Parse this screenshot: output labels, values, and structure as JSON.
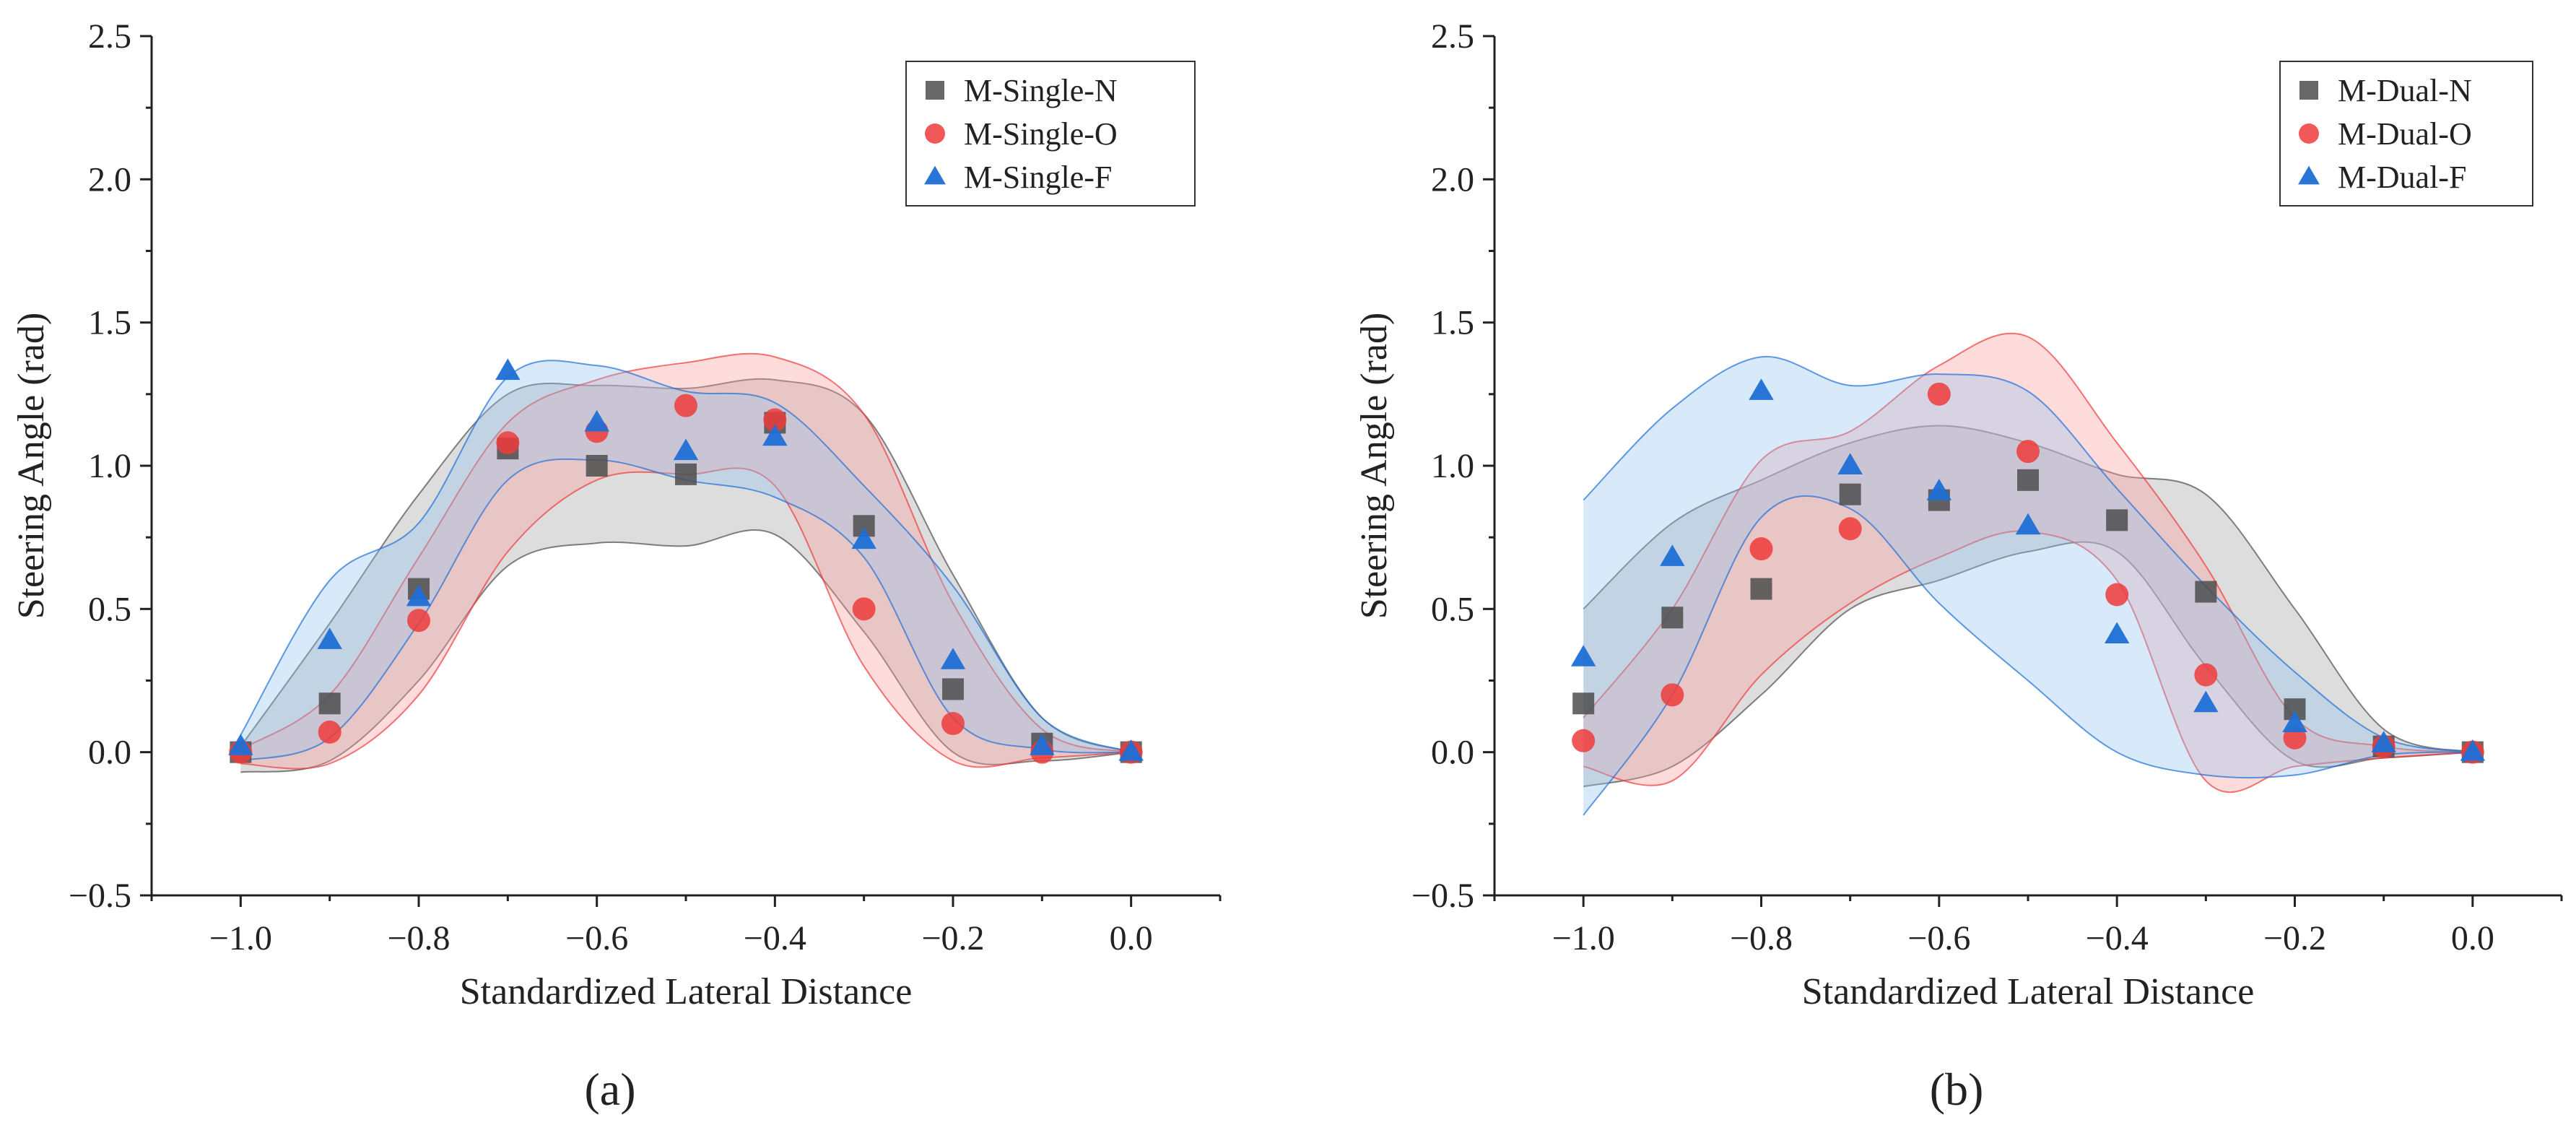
{
  "chart_data": [
    {
      "type": "scatter",
      "panel_label": "(a)",
      "xlabel": "Standardized Lateral Distance",
      "ylabel": "Steering Angle (rad)",
      "xlim": [
        -1.1,
        0.1
      ],
      "ylim": [
        -0.5,
        2.5
      ],
      "xticks": [
        -1.0,
        -0.8,
        -0.6,
        -0.4,
        -0.2,
        0.0
      ],
      "xtick_labels": [
        "−1.0",
        "−0.8",
        "−0.6",
        "−0.4",
        "−0.2",
        "0.0"
      ],
      "yticks": [
        -0.5,
        0.0,
        0.5,
        1.0,
        1.5,
        2.0,
        2.5
      ],
      "ytick_labels": [
        "−0.5",
        "0.0",
        "0.5",
        "1.0",
        "1.5",
        "2.0",
        "2.5"
      ],
      "legend_position": "top-right",
      "x": [
        -1.0,
        -0.9,
        -0.8,
        -0.7,
        -0.6,
        -0.5,
        -0.4,
        -0.3,
        -0.2,
        -0.1,
        0.0
      ],
      "series": [
        {
          "name": "M-Single-N",
          "marker": "square",
          "color": "#4d4d4d",
          "fill": "#9e9e9e",
          "values": [
            0.0,
            0.17,
            0.57,
            1.06,
            1.0,
            0.97,
            1.15,
            0.79,
            0.22,
            0.03,
            0.0
          ],
          "band_upper": [
            0.02,
            0.45,
            0.9,
            1.25,
            1.28,
            1.27,
            1.3,
            1.18,
            0.62,
            0.12,
            0.0
          ],
          "band_lower": [
            -0.07,
            -0.03,
            0.25,
            0.65,
            0.73,
            0.72,
            0.76,
            0.42,
            0.0,
            -0.03,
            0.0
          ]
        },
        {
          "name": "M-Single-O",
          "marker": "circle",
          "color": "#ee3b3b",
          "fill": "#ff9a9a",
          "values": [
            0.0,
            0.07,
            0.46,
            1.08,
            1.12,
            1.21,
            1.16,
            0.5,
            0.1,
            0.0,
            0.0
          ],
          "band_upper": [
            0.01,
            0.2,
            0.68,
            1.15,
            1.3,
            1.36,
            1.38,
            1.18,
            0.52,
            0.08,
            0.0
          ],
          "band_lower": [
            -0.04,
            -0.04,
            0.2,
            0.7,
            0.95,
            0.97,
            0.93,
            0.3,
            -0.03,
            -0.02,
            0.0
          ]
        },
        {
          "name": "M-Single-F",
          "marker": "triangle",
          "color": "#1f6fd6",
          "fill": "#8ec3f2",
          "values": [
            0.02,
            0.39,
            0.54,
            1.33,
            1.15,
            1.05,
            1.1,
            0.74,
            0.32,
            0.02,
            0.0
          ],
          "band_upper": [
            0.06,
            0.6,
            0.8,
            1.31,
            1.35,
            1.26,
            1.22,
            0.93,
            0.58,
            0.12,
            0.0
          ],
          "band_lower": [
            -0.03,
            0.05,
            0.45,
            0.95,
            1.02,
            0.95,
            0.89,
            0.68,
            0.12,
            0.01,
            0.0
          ]
        }
      ]
    },
    {
      "type": "scatter",
      "panel_label": "(b)",
      "xlabel": "Standardized Lateral Distance",
      "ylabel": "Steering Angle (rad)",
      "xlim": [
        -1.1,
        0.1
      ],
      "ylim": [
        -0.5,
        2.5
      ],
      "xticks": [
        -1.0,
        -0.8,
        -0.6,
        -0.4,
        -0.2,
        0.0
      ],
      "xtick_labels": [
        "−1.0",
        "−0.8",
        "−0.6",
        "−0.4",
        "−0.2",
        "0.0"
      ],
      "yticks": [
        -0.5,
        0.0,
        0.5,
        1.0,
        1.5,
        2.0,
        2.5
      ],
      "ytick_labels": [
        "−0.5",
        "0.0",
        "0.5",
        "1.0",
        "1.5",
        "2.0",
        "2.5"
      ],
      "legend_position": "top-right",
      "x": [
        -1.0,
        -0.9,
        -0.8,
        -0.7,
        -0.6,
        -0.5,
        -0.4,
        -0.3,
        -0.2,
        -0.1,
        0.0
      ],
      "series": [
        {
          "name": "M-Dual-N",
          "marker": "square",
          "color": "#4d4d4d",
          "fill": "#9e9e9e",
          "values": [
            0.17,
            0.47,
            0.57,
            0.9,
            0.88,
            0.95,
            0.81,
            0.56,
            0.15,
            0.02,
            0.0
          ],
          "band_upper": [
            0.5,
            0.8,
            0.95,
            1.08,
            1.14,
            1.08,
            0.97,
            0.9,
            0.5,
            0.08,
            0.0
          ],
          "band_lower": [
            -0.12,
            -0.05,
            0.2,
            0.5,
            0.6,
            0.7,
            0.7,
            0.3,
            -0.03,
            -0.02,
            0.0
          ]
        },
        {
          "name": "M-Dual-O",
          "marker": "circle",
          "color": "#ee3b3b",
          "fill": "#ff9a9a",
          "values": [
            0.04,
            0.2,
            0.71,
            0.78,
            1.25,
            1.05,
            0.55,
            0.27,
            0.05,
            0.02,
            0.0
          ],
          "band_upper": [
            0.12,
            0.5,
            1.02,
            1.12,
            1.35,
            1.45,
            1.08,
            0.65,
            0.12,
            0.02,
            0.0
          ],
          "band_lower": [
            -0.05,
            -0.1,
            0.27,
            0.52,
            0.68,
            0.77,
            0.6,
            -0.1,
            -0.05,
            -0.02,
            0.0
          ]
        },
        {
          "name": "M-Dual-F",
          "marker": "triangle",
          "color": "#1f6fd6",
          "fill": "#8ec3f2",
          "values": [
            0.33,
            0.68,
            1.26,
            1.0,
            0.91,
            0.79,
            0.41,
            0.17,
            0.1,
            0.03,
            0.0
          ],
          "band_upper": [
            0.88,
            1.2,
            1.38,
            1.28,
            1.32,
            1.26,
            0.92,
            0.58,
            0.28,
            0.05,
            0.0
          ],
          "band_lower": [
            -0.22,
            0.2,
            0.82,
            0.85,
            0.52,
            0.25,
            0.0,
            -0.08,
            -0.08,
            -0.01,
            0.0
          ]
        }
      ]
    }
  ]
}
